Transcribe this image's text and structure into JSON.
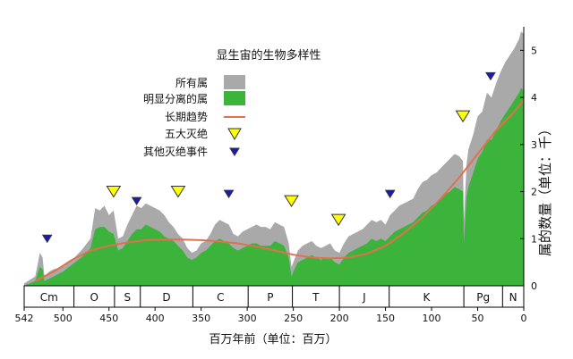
{
  "chart_data": {
    "type": "area",
    "title": "显生宙的生物多样性",
    "xlabel": "百万年前（单位：百万）",
    "ylabel": "属的数量（单位：千）",
    "xlim": [
      542,
      0
    ],
    "ylim": [
      0,
      5.5
    ],
    "x_ticks": [
      542,
      500,
      450,
      400,
      350,
      300,
      250,
      200,
      150,
      100,
      50,
      0
    ],
    "x_tick_labels": [
      "542",
      "500",
      "450",
      "400",
      "350",
      "300",
      "250",
      "200",
      "150",
      "100",
      "50",
      "0"
    ],
    "y_ticks": [
      0,
      1,
      2,
      3,
      4,
      5
    ],
    "y_tick_labels": [
      "0",
      "1",
      "2",
      "3",
      "4",
      "5"
    ],
    "legend_position": "top-left",
    "legend": [
      {
        "key": "all",
        "label": "所有属",
        "kind": "area",
        "color": "#a9a9a9"
      },
      {
        "key": "defined",
        "label": "明显分离的属",
        "kind": "area",
        "color": "#3cb43c"
      },
      {
        "key": "trend",
        "label": "长期趋势",
        "kind": "line",
        "color": "#e0704f"
      },
      {
        "key": "big5",
        "label": "五大灭绝",
        "kind": "marker-down-triangle",
        "color": "#ffff00"
      },
      {
        "key": "other",
        "label": "其他灭绝事件",
        "kind": "marker-down-triangle-small",
        "color": "#1a1ab4"
      }
    ],
    "series": [
      {
        "key": "all",
        "color": "#a9a9a9",
        "x": [
          542,
          530,
          525,
          522,
          520,
          515,
          510,
          500,
          490,
          480,
          470,
          465,
          460,
          455,
          450,
          445,
          440,
          435,
          430,
          425,
          420,
          415,
          410,
          405,
          400,
          395,
          390,
          385,
          380,
          375,
          370,
          365,
          360,
          355,
          350,
          345,
          340,
          335,
          330,
          325,
          320,
          315,
          310,
          305,
          300,
          295,
          290,
          285,
          280,
          275,
          270,
          265,
          260,
          255,
          252,
          250,
          245,
          240,
          235,
          230,
          225,
          220,
          215,
          210,
          205,
          200,
          195,
          190,
          185,
          180,
          175,
          170,
          165,
          160,
          155,
          150,
          145,
          140,
          135,
          130,
          125,
          120,
          115,
          110,
          105,
          100,
          95,
          90,
          85,
          80,
          75,
          70,
          66,
          65,
          62,
          60,
          55,
          50,
          45,
          40,
          35,
          30,
          25,
          20,
          15,
          10,
          5,
          3,
          0
        ],
        "y": [
          0.05,
          0.2,
          0.7,
          0.6,
          0.2,
          0.3,
          0.35,
          0.4,
          0.55,
          0.75,
          1.0,
          1.65,
          1.6,
          1.7,
          1.5,
          1.6,
          1.0,
          1.05,
          1.3,
          1.5,
          1.7,
          1.65,
          1.75,
          1.7,
          1.65,
          1.6,
          1.5,
          1.35,
          1.25,
          1.1,
          1.0,
          0.8,
          0.7,
          0.75,
          0.9,
          0.95,
          1.1,
          1.3,
          1.4,
          1.35,
          1.3,
          1.1,
          1.05,
          1.15,
          1.2,
          1.25,
          1.3,
          1.25,
          1.25,
          1.2,
          1.35,
          1.3,
          1.25,
          0.9,
          0.4,
          0.5,
          0.75,
          0.85,
          0.9,
          0.95,
          0.85,
          0.8,
          0.85,
          0.9,
          0.75,
          0.7,
          0.9,
          1.05,
          1.1,
          1.15,
          1.2,
          1.3,
          1.4,
          1.35,
          1.4,
          1.3,
          1.5,
          1.6,
          1.7,
          1.75,
          1.8,
          1.85,
          2.05,
          2.2,
          2.25,
          2.35,
          2.4,
          2.5,
          2.6,
          2.7,
          2.8,
          2.75,
          2.65,
          1.4,
          2.6,
          2.9,
          3.2,
          3.6,
          3.7,
          4.1,
          4.0,
          4.3,
          4.55,
          4.75,
          4.9,
          5.05,
          5.25,
          5.4,
          5.35
        ]
      },
      {
        "key": "defined",
        "color": "#3cb43c",
        "x": [
          542,
          530,
          525,
          522,
          520,
          515,
          510,
          500,
          490,
          480,
          470,
          465,
          460,
          455,
          450,
          445,
          440,
          435,
          430,
          425,
          420,
          415,
          410,
          405,
          400,
          395,
          390,
          385,
          380,
          375,
          370,
          365,
          360,
          355,
          350,
          345,
          340,
          335,
          330,
          325,
          320,
          315,
          310,
          305,
          300,
          295,
          290,
          285,
          280,
          275,
          270,
          265,
          260,
          255,
          252,
          250,
          245,
          240,
          235,
          230,
          225,
          220,
          215,
          210,
          205,
          200,
          195,
          190,
          185,
          180,
          175,
          170,
          165,
          160,
          155,
          150,
          145,
          140,
          135,
          130,
          125,
          120,
          115,
          110,
          105,
          100,
          95,
          90,
          85,
          80,
          75,
          70,
          66,
          65,
          62,
          60,
          55,
          50,
          45,
          40,
          35,
          30,
          25,
          20,
          15,
          10,
          5,
          3,
          0
        ],
        "y": [
          0.0,
          0.1,
          0.4,
          0.35,
          0.1,
          0.15,
          0.2,
          0.3,
          0.45,
          0.6,
          0.8,
          1.2,
          1.25,
          1.25,
          1.15,
          1.1,
          0.75,
          0.8,
          0.95,
          1.1,
          1.2,
          1.2,
          1.3,
          1.25,
          1.2,
          1.15,
          1.05,
          1.0,
          0.95,
          0.85,
          0.75,
          0.6,
          0.55,
          0.6,
          0.7,
          0.75,
          0.85,
          0.95,
          1.0,
          0.95,
          0.9,
          0.8,
          0.75,
          0.8,
          0.85,
          0.9,
          0.9,
          0.85,
          0.85,
          0.85,
          0.95,
          0.9,
          0.85,
          0.6,
          0.2,
          0.3,
          0.5,
          0.55,
          0.6,
          0.65,
          0.6,
          0.55,
          0.6,
          0.6,
          0.5,
          0.45,
          0.6,
          0.7,
          0.75,
          0.8,
          0.85,
          0.9,
          1.0,
          0.95,
          1.0,
          0.95,
          1.05,
          1.15,
          1.2,
          1.25,
          1.3,
          1.35,
          1.45,
          1.55,
          1.6,
          1.7,
          1.75,
          1.85,
          1.95,
          2.0,
          2.1,
          2.05,
          2.0,
          0.9,
          1.9,
          2.1,
          2.4,
          2.7,
          2.85,
          3.1,
          3.1,
          3.3,
          3.5,
          3.65,
          3.8,
          3.95,
          4.1,
          4.2,
          4.15
        ]
      },
      {
        "key": "trend",
        "color": "#e0704f",
        "x": [
          530,
          510,
          490,
          470,
          450,
          430,
          410,
          390,
          370,
          350,
          330,
          310,
          290,
          270,
          250,
          230,
          210,
          190,
          170,
          150,
          130,
          110,
          90,
          70,
          50,
          30,
          10,
          0
        ],
        "y": [
          0.1,
          0.3,
          0.55,
          0.75,
          0.85,
          0.92,
          0.97,
          0.98,
          0.98,
          0.97,
          0.94,
          0.9,
          0.83,
          0.75,
          0.66,
          0.6,
          0.58,
          0.6,
          0.68,
          0.85,
          1.12,
          1.45,
          1.85,
          2.3,
          2.8,
          3.3,
          3.7,
          3.95
        ]
      }
    ],
    "markers": {
      "big5": [
        {
          "x": 445,
          "y": 2.0
        },
        {
          "x": 375,
          "y": 2.0
        },
        {
          "x": 252,
          "y": 1.8
        },
        {
          "x": 201,
          "y": 1.4
        },
        {
          "x": 66,
          "y": 3.6
        }
      ],
      "other": [
        {
          "x": 517,
          "y": 1.0
        },
        {
          "x": 420,
          "y": 1.8
        },
        {
          "x": 320,
          "y": 1.95
        },
        {
          "x": 145,
          "y": 1.95
        },
        {
          "x": 36,
          "y": 4.45
        }
      ]
    },
    "periods": [
      {
        "label": "Cm",
        "start": 542,
        "end": 488
      },
      {
        "label": "O",
        "start": 488,
        "end": 444
      },
      {
        "label": "S",
        "start": 444,
        "end": 416
      },
      {
        "label": "D",
        "start": 416,
        "end": 359
      },
      {
        "label": "C",
        "start": 359,
        "end": 299
      },
      {
        "label": "P",
        "start": 299,
        "end": 251
      },
      {
        "label": "T",
        "start": 251,
        "end": 200
      },
      {
        "label": "J",
        "start": 200,
        "end": 146
      },
      {
        "label": "K",
        "start": 146,
        "end": 65
      },
      {
        "label": "Pg",
        "start": 65,
        "end": 23
      },
      {
        "label": "N",
        "start": 23,
        "end": 0
      }
    ]
  }
}
